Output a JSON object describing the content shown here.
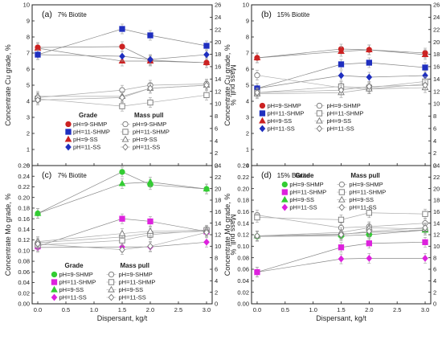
{
  "chart_data": [
    {
      "type": "line",
      "panel_label": "(a)",
      "subtitle": "7% Biotite",
      "xlabel": "Dispersant, kg/t",
      "ylabel": "Concentrate Cu grade, %",
      "y2label": "Mass pull, %",
      "x": [
        0,
        1.5,
        2,
        3
      ],
      "xlim": [
        -0.1,
        3.1
      ],
      "xticks": [
        0,
        0.5,
        1,
        1.5,
        2,
        2.5,
        3
      ],
      "ylim": [
        0,
        10
      ],
      "yticks": [
        0,
        1,
        2,
        3,
        4,
        5,
        6,
        7,
        8,
        9,
        10
      ],
      "y2lim": [
        0,
        26
      ],
      "y2ticks": [
        0,
        2,
        4,
        6,
        8,
        10,
        12,
        14,
        16,
        18,
        20,
        22,
        24,
        26
      ],
      "legend_grade_title": "Grade",
      "legend_mass_title": "Mass pull",
      "legend_x": 0.5,
      "legend_y": 3.0,
      "series": [
        {
          "name": "pH=9-SHMP",
          "axis": "grade",
          "marker": "circle",
          "color": "#cc2222",
          "filled": true,
          "values": [
            7.35,
            7.4,
            6.55,
            6.4
          ]
        },
        {
          "name": "pH=11-SHMP",
          "axis": "grade",
          "marker": "square",
          "color": "#1f2fbf",
          "filled": true,
          "values": [
            6.9,
            8.5,
            8.1,
            7.45
          ]
        },
        {
          "name": "pH=9-SS",
          "axis": "grade",
          "marker": "triangle",
          "color": "#cc2222",
          "filled": true,
          "values": [
            7.3,
            6.5,
            6.5,
            6.4
          ]
        },
        {
          "name": "pH=11-SS",
          "axis": "grade",
          "marker": "diamond",
          "color": "#1f2fbf",
          "filled": true,
          "values": [
            6.9,
            6.8,
            6.6,
            6.9
          ]
        },
        {
          "name": "pH=9-SHMP",
          "axis": "mass",
          "marker": "circle",
          "color": "#777777",
          "filled": false,
          "values": [
            11.0,
            12.2,
            13.0,
            13.2
          ]
        },
        {
          "name": "pH=11-SHMP",
          "axis": "mass",
          "marker": "square",
          "color": "#777777",
          "filled": false,
          "values": [
            10.8,
            9.6,
            10.2,
            11.4
          ]
        },
        {
          "name": "pH=9-SS",
          "axis": "mass",
          "marker": "triangle",
          "color": "#777777",
          "filled": false,
          "values": [
            11.2,
            11.2,
            12.5,
            13.0
          ]
        },
        {
          "name": "pH=11-SS",
          "axis": "mass",
          "marker": "diamond",
          "color": "#777777",
          "filled": false,
          "values": [
            10.6,
            11.0,
            12.5,
            13.0
          ]
        }
      ]
    },
    {
      "type": "line",
      "panel_label": "(b)",
      "subtitle": "15% Biotite",
      "xlabel": "Dispersant, kg/t",
      "ylabel": "Concentrate Cu grade, %",
      "y2label": "Mass pull, %",
      "x": [
        0,
        1.5,
        2,
        3
      ],
      "xlim": [
        -0.1,
        3.1
      ],
      "xticks": [
        0,
        0.5,
        1,
        1.5,
        2,
        2.5,
        3
      ],
      "ylim": [
        0,
        10
      ],
      "yticks": [
        0,
        1,
        2,
        3,
        4,
        5,
        6,
        7,
        8,
        9,
        10
      ],
      "y2lim": [
        0,
        26
      ],
      "y2ticks": [
        0,
        2,
        4,
        6,
        8,
        10,
        12,
        14,
        16,
        18,
        20,
        22,
        24,
        26
      ],
      "legend_grade_title": "",
      "legend_mass_title": "",
      "legend_x": 0.05,
      "legend_y": 3.6,
      "series": [
        {
          "name": "pH=9-SHMP",
          "axis": "grade",
          "marker": "circle",
          "color": "#cc2222",
          "filled": true,
          "values": [
            6.7,
            7.25,
            7.2,
            7.0
          ]
        },
        {
          "name": "pH=11-SHMP",
          "axis": "grade",
          "marker": "square",
          "color": "#1f2fbf",
          "filled": true,
          "values": [
            4.8,
            6.3,
            6.4,
            6.1
          ]
        },
        {
          "name": "pH=9-SS",
          "axis": "grade",
          "marker": "triangle",
          "color": "#cc2222",
          "filled": true,
          "values": [
            6.7,
            7.1,
            7.2,
            6.9
          ]
        },
        {
          "name": "pH=11-SS",
          "axis": "grade",
          "marker": "diamond",
          "color": "#1f2fbf",
          "filled": true,
          "values": [
            4.8,
            5.6,
            5.5,
            5.6
          ]
        },
        {
          "name": "pH=9-SHMP",
          "axis": "mass",
          "marker": "circle",
          "color": "#777777",
          "filled": false,
          "values": [
            14.6,
            12.6,
            12.4,
            13.2
          ]
        },
        {
          "name": "pH=11-SHMP",
          "axis": "mass",
          "marker": "square",
          "color": "#777777",
          "filled": false,
          "values": [
            11.8,
            12.8,
            12.6,
            13.6
          ]
        },
        {
          "name": "pH=9-SS",
          "axis": "mass",
          "marker": "triangle",
          "color": "#777777",
          "filled": false,
          "values": [
            11.6,
            11.8,
            12.4,
            12.6
          ]
        },
        {
          "name": "pH=11-SS",
          "axis": "mass",
          "marker": "diamond",
          "color": "#777777",
          "filled": false,
          "values": [
            11.8,
            12.2,
            12.8,
            13.0
          ]
        }
      ]
    },
    {
      "type": "line",
      "panel_label": "(c)",
      "subtitle": "7% Biotite",
      "xlabel": "Dispersant, kg/t",
      "ylabel": "Concentrate Mo grade, %",
      "y2label": "Mass pull, %",
      "x": [
        0,
        1.5,
        2,
        3
      ],
      "xlim": [
        -0.1,
        3.1
      ],
      "xticks": [
        0,
        0.5,
        1,
        1.5,
        2,
        2.5,
        3
      ],
      "ylim": [
        0,
        0.26
      ],
      "yticks": [
        0,
        0.02,
        0.04,
        0.06,
        0.08,
        0.1,
        0.12,
        0.14,
        0.16,
        0.18,
        0.2,
        0.22,
        0.24,
        0.26
      ],
      "y2lim": [
        0,
        24
      ],
      "y2ticks": [
        0,
        2,
        4,
        6,
        8,
        10,
        12,
        14,
        16,
        18,
        20,
        22,
        24
      ],
      "legend_grade_title": "Grade",
      "legend_mass_title": "Mass pull",
      "legend_x": 0.25,
      "legend_y": 0.068,
      "series": [
        {
          "name": "pH=9-SHMP",
          "axis": "grade",
          "marker": "circle",
          "color": "#33cc33",
          "filled": true,
          "values": [
            0.17,
            0.248,
            0.224,
            0.216
          ]
        },
        {
          "name": "pH=11-SHMP",
          "axis": "grade",
          "marker": "square",
          "color": "#dd22dd",
          "filled": true,
          "values": [
            0.108,
            0.16,
            0.155,
            0.136
          ]
        },
        {
          "name": "pH=9-SS",
          "axis": "grade",
          "marker": "triangle",
          "color": "#33cc33",
          "filled": true,
          "values": [
            0.17,
            0.226,
            0.229,
            0.216
          ]
        },
        {
          "name": "pH=11-SS",
          "axis": "grade",
          "marker": "diamond",
          "color": "#dd22dd",
          "filled": true,
          "values": [
            0.106,
            0.107,
            0.107,
            0.116
          ]
        },
        {
          "name": "pH=9-SHMP",
          "axis": "mass",
          "marker": "circle",
          "color": "#777777",
          "filled": false,
          "values": [
            10.6,
            11.6,
            12.3,
            12.6
          ]
        },
        {
          "name": "pH=11-SHMP",
          "axis": "mass",
          "marker": "square",
          "color": "#777777",
          "filled": false,
          "values": [
            10.2,
            11.0,
            12.0,
            12.8
          ]
        },
        {
          "name": "pH=9-SS",
          "axis": "mass",
          "marker": "triangle",
          "color": "#777777",
          "filled": false,
          "values": [
            10.8,
            12.2,
            12.6,
            12.8
          ]
        },
        {
          "name": "pH=11-SS",
          "axis": "mass",
          "marker": "diamond",
          "color": "#777777",
          "filled": false,
          "values": [
            10.4,
            9.4,
            10.0,
            12.4
          ]
        }
      ]
    },
    {
      "type": "line",
      "panel_label": "(d)",
      "subtitle": "15% Biotite",
      "xlabel": "Dispersant, kg/t",
      "ylabel": "Concentrate Mo grade, %",
      "y2label": "Mass pull, %",
      "x": [
        0,
        1.5,
        2,
        3
      ],
      "xlim": [
        -0.1,
        3.1
      ],
      "xticks": [
        0,
        0.5,
        1,
        1.5,
        2,
        2.5,
        3
      ],
      "ylim": [
        0,
        0.24
      ],
      "yticks": [
        0,
        0.02,
        0.04,
        0.06,
        0.08,
        0.1,
        0.12,
        0.14,
        0.16,
        0.18,
        0.2,
        0.22,
        0.24
      ],
      "y2lim": [
        0,
        24
      ],
      "y2ticks": [
        0,
        2,
        4,
        6,
        8,
        10,
        12,
        14,
        16,
        18,
        20,
        22,
        24
      ],
      "legend_grade_title": "Grade",
      "legend_mass_title": "Mass pull",
      "legend_x": 0.45,
      "legend_y": 0.219,
      "series": [
        {
          "name": "pH=9-SHMP",
          "axis": "grade",
          "marker": "circle",
          "color": "#33cc33",
          "filled": true,
          "values": [
            0.117,
            0.118,
            0.12,
            0.128
          ]
        },
        {
          "name": "pH=11-SHMP",
          "axis": "grade",
          "marker": "square",
          "color": "#dd22dd",
          "filled": true,
          "values": [
            0.055,
            0.098,
            0.105,
            0.107
          ]
        },
        {
          "name": "pH=9-SS",
          "axis": "grade",
          "marker": "triangle",
          "color": "#33cc33",
          "filled": true,
          "values": [
            0.118,
            0.121,
            0.124,
            0.128
          ]
        },
        {
          "name": "pH=11-SS",
          "axis": "grade",
          "marker": "diamond",
          "color": "#dd22dd",
          "filled": true,
          "values": [
            0.055,
            0.078,
            0.079,
            0.079
          ]
        },
        {
          "name": "pH=9-SHMP",
          "axis": "mass",
          "marker": "circle",
          "color": "#777777",
          "filled": false,
          "values": [
            15.4,
            13.2,
            13.4,
            14.0
          ]
        },
        {
          "name": "pH=11-SHMP",
          "axis": "mass",
          "marker": "square",
          "color": "#777777",
          "filled": false,
          "values": [
            15.0,
            14.6,
            15.8,
            15.6
          ]
        },
        {
          "name": "pH=9-SS",
          "axis": "mass",
          "marker": "triangle",
          "color": "#777777",
          "filled": false,
          "values": [
            11.8,
            12.4,
            13.2,
            13.0
          ]
        },
        {
          "name": "pH=11-SS",
          "axis": "mass",
          "marker": "diamond",
          "color": "#777777",
          "filled": false,
          "values": [
            11.8,
            12.0,
            12.6,
            13.2
          ]
        }
      ]
    }
  ]
}
